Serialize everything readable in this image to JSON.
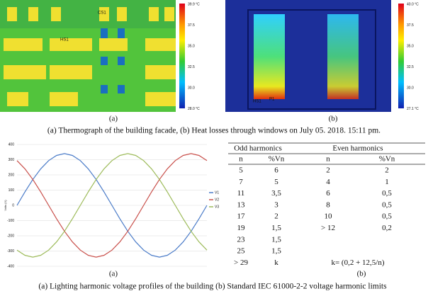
{
  "thermographs": [
    {
      "scale": [
        "39.9 °C",
        "37.5",
        "35.0",
        "32.5",
        "30.0",
        "28.0 °C"
      ],
      "labels": [
        "CS1",
        "HS1"
      ],
      "sublabel": "(a)"
    },
    {
      "scale": [
        "40.0 °C",
        "37.5",
        "35.0",
        "32.5",
        "30.0",
        "27.1 °C"
      ],
      "labels": [
        "HS1",
        "P1"
      ],
      "sublabel": "(b)"
    }
  ],
  "caption_top": "(a) Thermograph of the building facade, (b) Heat losses through windows on July 05. 2018. 15:11 pm.",
  "chart_data": {
    "type": "line",
    "ylabel": "Volts (V)",
    "sublabel": "(a)",
    "categories": [
      null,
      null,
      null,
      null,
      null,
      null,
      null,
      null,
      null,
      null,
      null,
      null,
      null,
      null,
      null,
      null,
      null,
      null,
      null,
      null,
      null,
      null,
      null,
      null,
      null
    ],
    "series": [
      {
        "name": "V1",
        "color": "#4a7bc8",
        "values": [
          0,
          88,
          170,
          240,
          294,
          328,
          340,
          328,
          294,
          240,
          170,
          88,
          0,
          -88,
          -170,
          -240,
          -294,
          -328,
          -340,
          -328,
          -294,
          -240,
          -170,
          -88,
          0
        ]
      },
      {
        "name": "V2",
        "color": "#c9504b",
        "values": [
          294,
          240,
          170,
          88,
          0,
          -88,
          -170,
          -240,
          -294,
          -328,
          -340,
          -328,
          -294,
          -240,
          -170,
          -88,
          0,
          88,
          170,
          240,
          294,
          328,
          340,
          328,
          294
        ]
      },
      {
        "name": "V3",
        "color": "#9dbb5a",
        "values": [
          -294,
          -328,
          -340,
          -328,
          -294,
          -240,
          -170,
          -88,
          0,
          88,
          170,
          240,
          294,
          328,
          340,
          328,
          294,
          240,
          170,
          88,
          0,
          -88,
          -170,
          -240,
          -294
        ]
      }
    ],
    "ylim": [
      -400,
      400
    ],
    "yticks": [
      -400,
      -300,
      -200,
      -100,
      0,
      100,
      200,
      300,
      400
    ],
    "grid": true,
    "legend": "right"
  },
  "table": {
    "groups": [
      "Odd harmonics",
      "Even harmonics"
    ],
    "header": [
      "n",
      "%Vn",
      "n",
      "%Vn"
    ],
    "rows": [
      [
        "5",
        "6",
        "2",
        "2"
      ],
      [
        "7",
        "5",
        "4",
        "1"
      ],
      [
        "11",
        "3,5",
        "6",
        "0,5"
      ],
      [
        "13",
        "3",
        "8",
        "0,5"
      ],
      [
        "17",
        "2",
        "10",
        "0,5"
      ],
      [
        "19",
        "1,5",
        "> 12",
        "0,2"
      ],
      [
        "23",
        "1,5"
      ],
      [
        "25",
        "1,5"
      ],
      [
        "> 29",
        "k",
        "k= (0,2 + 12,5/n)"
      ]
    ],
    "sublabel": "(b)"
  },
  "caption_bottom": "(a) Lighting harmonic voltage profiles of the building (b) Standard IEC 61000-2-2 voltage harmonic limits"
}
